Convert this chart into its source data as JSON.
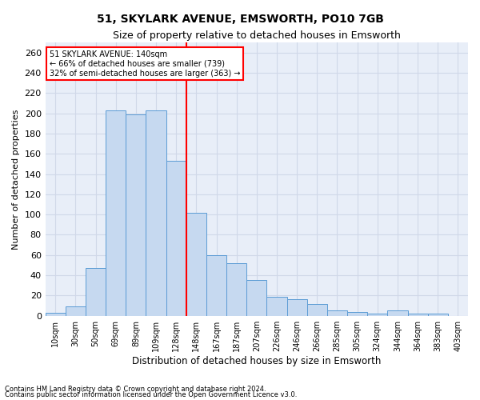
{
  "title1": "51, SKYLARK AVENUE, EMSWORTH, PO10 7GB",
  "title2": "Size of property relative to detached houses in Emsworth",
  "xlabel": "Distribution of detached houses by size in Emsworth",
  "ylabel": "Number of detached properties",
  "bar_labels": [
    "10sqm",
    "30sqm",
    "50sqm",
    "69sqm",
    "89sqm",
    "109sqm",
    "128sqm",
    "148sqm",
    "167sqm",
    "187sqm",
    "207sqm",
    "226sqm",
    "246sqm",
    "266sqm",
    "285sqm",
    "305sqm",
    "324sqm",
    "344sqm",
    "364sqm",
    "383sqm",
    "403sqm"
  ],
  "bar_values": [
    3,
    9,
    47,
    203,
    199,
    203,
    153,
    102,
    60,
    52,
    35,
    19,
    16,
    12,
    5,
    4,
    2,
    5,
    2,
    2,
    0
  ],
  "bar_color": "#c6d9f0",
  "bar_edge_color": "#5b9bd5",
  "vline_color": "red",
  "annotation_title": "51 SKYLARK AVENUE: 140sqm",
  "annotation_line1": "← 66% of detached houses are smaller (739)",
  "annotation_line2": "32% of semi-detached houses are larger (363) →",
  "annotation_box_color": "white",
  "annotation_box_edge": "red",
  "ylim": [
    0,
    270
  ],
  "yticks": [
    0,
    20,
    40,
    60,
    80,
    100,
    120,
    140,
    160,
    180,
    200,
    220,
    240,
    260
  ],
  "grid_color": "#d0d8e8",
  "bg_color": "#e8eef8",
  "footnote1": "Contains HM Land Registry data © Crown copyright and database right 2024.",
  "footnote2": "Contains public sector information licensed under the Open Government Licence v3.0."
}
